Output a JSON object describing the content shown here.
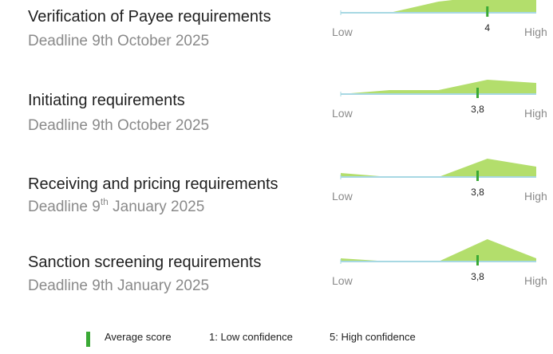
{
  "chart_data": [
    {
      "type": "area",
      "title": "Verification of Payee requirements",
      "subtitle": "Deadline 9th October 2025",
      "x": [
        1,
        2,
        3,
        4,
        5
      ],
      "values": [
        0,
        0,
        14,
        21,
        20
      ],
      "color": "#b3de6c",
      "xlim": [
        1,
        5
      ],
      "xticks": [
        {
          "value": 1,
          "label": "Low"
        },
        {
          "value": 5,
          "label": "High"
        }
      ],
      "ylim": [
        0,
        30
      ],
      "marker": 4,
      "marker_color": "#3aa935"
    },
    {
      "type": "area",
      "title": "Initiating requirements",
      "subtitle": "Deadline 9th October 2025",
      "x": [
        1,
        2,
        3,
        4,
        5
      ],
      "values": [
        0,
        5,
        5,
        18,
        14
      ],
      "color": "#b3de6c",
      "xlim": [
        1,
        5
      ],
      "xticks": [
        {
          "value": 1,
          "label": "Low"
        },
        {
          "value": 5,
          "label": "High"
        }
      ],
      "ylim": [
        0,
        30
      ],
      "marker": {
        "value": 3.8,
        "label": "3,8"
      },
      "marker_color": "#3aa935"
    },
    {
      "type": "area",
      "title": "Receiving and pricing requirements",
      "subtitle": {
        "before": "Deadline 9",
        "sup": "th",
        "after": " January 2025"
      },
      "x": [
        1,
        2,
        3,
        4,
        5
      ],
      "values": [
        5,
        0,
        0,
        23,
        13
      ],
      "color": "#b3de6c",
      "xlim": [
        1,
        5
      ],
      "xticks": [
        {
          "value": 1,
          "label": "Low"
        },
        {
          "value": 5,
          "label": "High"
        }
      ],
      "ylim": [
        0,
        30
      ],
      "marker": {
        "value": 3.8,
        "label": "3,8"
      },
      "marker_color": "#3aa935"
    },
    {
      "type": "area",
      "title": "Sanction screening requirements",
      "subtitle": "Deadline 9th January 2025",
      "x": [
        1,
        2,
        3,
        4,
        5
      ],
      "values": [
        4,
        0,
        0,
        28,
        4
      ],
      "color": "#b3de6c",
      "xlim": [
        1,
        5
      ],
      "xticks": [
        {
          "value": 1,
          "label": "Low"
        },
        {
          "value": 5,
          "label": "High"
        }
      ],
      "ylim": [
        0,
        30
      ],
      "marker": {
        "value": 3.8,
        "label": "3,8"
      },
      "marker_color": "#3aa935"
    }
  ],
  "legend": [
    "Average score",
    "1: Low confidence",
    "5: High confidence"
  ]
}
